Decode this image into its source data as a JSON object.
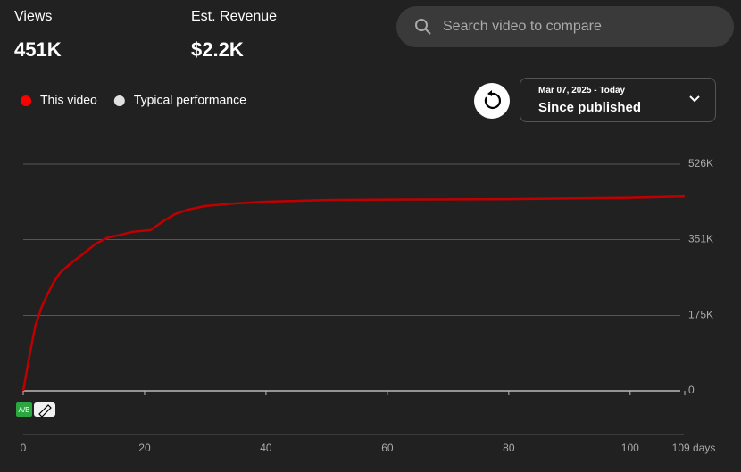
{
  "header": {
    "metrics": [
      {
        "label": "Views",
        "value": "451K"
      },
      {
        "label": "Est. Revenue",
        "value": "$2.2K"
      }
    ],
    "search_placeholder": "Search video to compare"
  },
  "date_range": {
    "dates": "Mar 07, 2025 - Today",
    "label": "Since published"
  },
  "ab_badge": "A/B",
  "chart_data": {
    "type": "line",
    "x": [
      0,
      1,
      2,
      3,
      4,
      5,
      6,
      8,
      10,
      12,
      14,
      16,
      18,
      21,
      23,
      25,
      27,
      30,
      35,
      40,
      50,
      60,
      80,
      100,
      109
    ],
    "series": [
      {
        "name": "This video",
        "color": "#c00000",
        "legend_color": "#ff0000",
        "values": [
          0,
          79000,
          151000,
          193000,
          224000,
          251000,
          273000,
          298000,
          319000,
          342000,
          356000,
          362000,
          369000,
          373000,
          393000,
          410000,
          420000,
          429000,
          435000,
          439000,
          443000,
          444000,
          445000,
          448000,
          451000
        ]
      },
      {
        "name": "Typical performance",
        "color": "#e0e0e0",
        "legend_color": "#e0e0e0",
        "values": [
          null,
          null,
          null,
          null,
          null,
          null,
          null,
          null,
          null,
          null,
          null,
          null,
          null,
          null,
          null,
          null,
          null,
          null,
          null,
          null,
          null,
          null,
          null,
          null,
          null
        ]
      }
    ],
    "xlim": [
      0,
      109
    ],
    "xticks": [
      0,
      20,
      40,
      60,
      80,
      100,
      {
        "value": 109,
        "label": "109 days"
      }
    ],
    "ylim": [
      0,
      526000
    ],
    "yticks": [
      {
        "value": 0,
        "label": "0"
      },
      {
        "value": 175000,
        "label": "175K"
      },
      {
        "value": 351000,
        "label": "351K"
      },
      {
        "value": 526000,
        "label": "526K"
      }
    ],
    "grid": true
  }
}
